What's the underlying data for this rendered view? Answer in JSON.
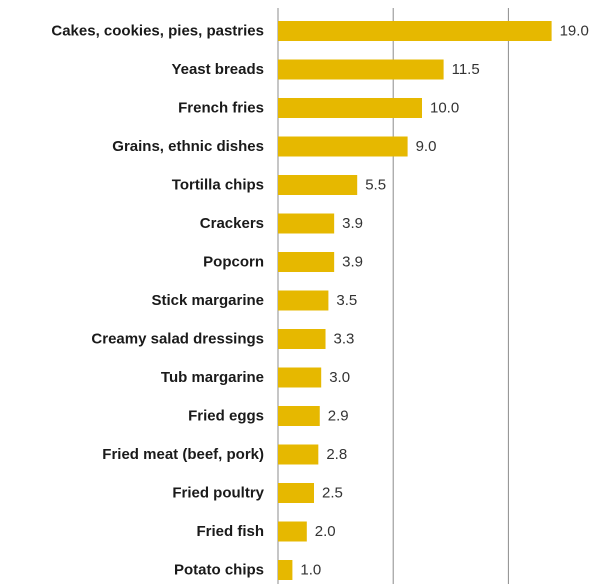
{
  "colors": {
    "bar": "#E6B800",
    "grid": "#8c8c8c",
    "text": "#1a1a1a"
  },
  "chart_data": {
    "type": "bar",
    "orientation": "horizontal",
    "title": "",
    "xlabel": "",
    "ylabel": "",
    "xlim": [
      0,
      20
    ],
    "grid": true,
    "categories": [
      "Cakes, cookies, pies, pastries",
      "Yeast breads",
      "French fries",
      "Grains, ethnic dishes",
      "Tortilla chips",
      "Crackers",
      "Popcorn",
      "Stick margarine",
      "Creamy salad dressings",
      "Tub margarine",
      "Fried eggs",
      "Fried meat (beef, pork)",
      "Fried poultry",
      "Fried fish",
      "Potato chips"
    ],
    "values": [
      19.0,
      11.5,
      10.0,
      9.0,
      5.5,
      3.9,
      3.9,
      3.5,
      3.3,
      3.0,
      2.9,
      2.8,
      2.5,
      2.0,
      1.0
    ],
    "value_labels": [
      "19.0",
      "11.5",
      "10.0",
      "9.0",
      "5.5",
      "3.9",
      "3.9",
      "3.5",
      "3.3",
      "3.0",
      "2.9",
      "2.8",
      "2.5",
      "2.0",
      "1.0"
    ]
  }
}
